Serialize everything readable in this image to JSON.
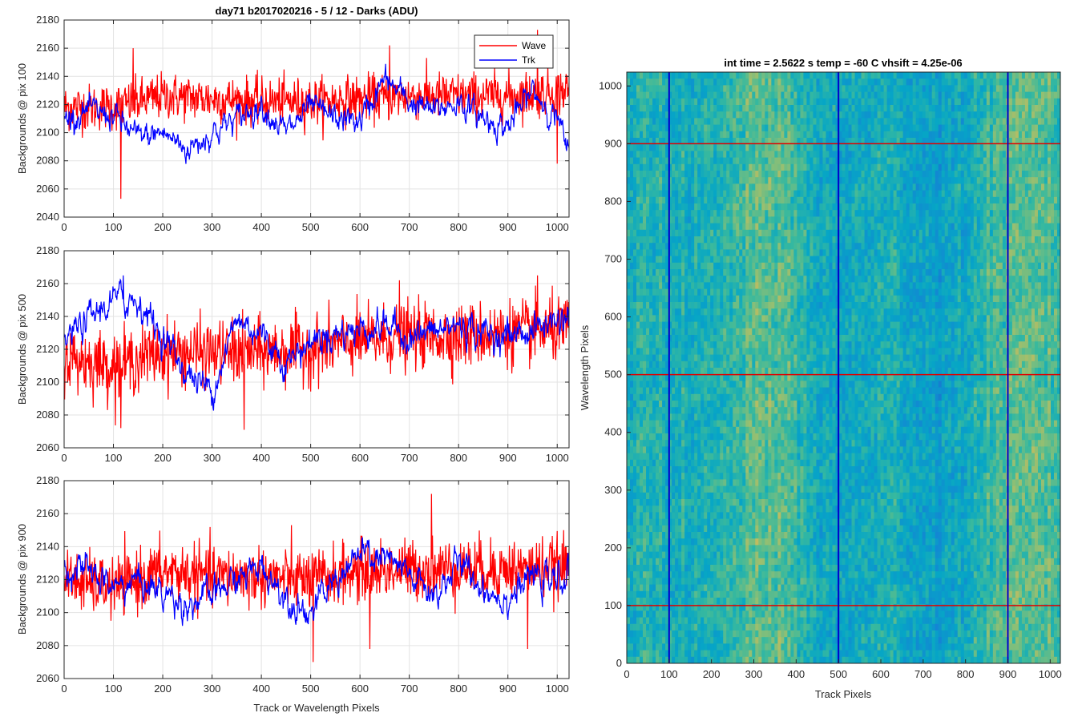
{
  "figure": {
    "title": "day71 b2017020216 - 5 / 12 - Darks (ADU)",
    "xlabel": "Track or Wavelength Pixels",
    "legend": [
      "Wave",
      "Trk"
    ],
    "colors": {
      "wave": "#ff0000",
      "trk": "#0000ff",
      "grid": "#e6e6e6",
      "axis": "#262626"
    }
  },
  "chart_data": [
    {
      "type": "line",
      "ylabel": "Backgrounds @ pix 100",
      "xlim": [
        0,
        1024
      ],
      "ylim": [
        2040,
        2180
      ],
      "xticks": [
        0,
        100,
        200,
        300,
        400,
        500,
        600,
        700,
        800,
        900,
        1000
      ],
      "yticks": [
        2040,
        2060,
        2080,
        2100,
        2120,
        2140,
        2160,
        2180
      ],
      "grid": true,
      "legend_position": "top-right",
      "series": [
        {
          "name": "Wave",
          "color": "#ff0000",
          "baseline": {
            "x": [
              0,
              100,
              200,
              300,
              400,
              500,
              600,
              700,
              800,
              900,
              1024
            ],
            "y": [
              2118,
              2118,
              2126,
              2124,
              2122,
              2122,
              2124,
              2126,
              2126,
              2126,
              2130
            ]
          },
          "noise": 11,
          "spikes": [
            [
              115,
              2053
            ],
            [
              140,
              2160
            ],
            [
              960,
              2173
            ],
            [
              1000,
              2078
            ],
            [
              660,
              2162
            ]
          ]
        },
        {
          "name": "Trk",
          "color": "#0000ff",
          "baseline": {
            "x": [
              0,
              50,
              100,
              150,
              200,
              250,
              300,
              350,
              400,
              450,
              500,
              550,
              600,
              650,
              700,
              750,
              800,
              850,
              900,
              950,
              1000,
              1024
            ],
            "y": [
              2110,
              2115,
              2112,
              2096,
              2100,
              2088,
              2100,
              2110,
              2120,
              2100,
              2118,
              2110,
              2108,
              2138,
              2122,
              2115,
              2122,
              2110,
              2104,
              2130,
              2110,
              2082
            ]
          },
          "noise": 4
        }
      ]
    },
    {
      "type": "line",
      "ylabel": "Backgrounds @ pix 500",
      "xlim": [
        0,
        1024
      ],
      "ylim": [
        2060,
        2180
      ],
      "xticks": [
        0,
        100,
        200,
        300,
        400,
        500,
        600,
        700,
        800,
        900,
        1000
      ],
      "yticks": [
        2060,
        2080,
        2100,
        2120,
        2140,
        2160,
        2180
      ],
      "grid": true,
      "series": [
        {
          "name": "Wave",
          "color": "#ff0000",
          "baseline": {
            "x": [
              0,
              100,
              200,
              300,
              400,
              500,
              600,
              700,
              800,
              900,
              1024
            ],
            "y": [
              2115,
              2110,
              2118,
              2118,
              2118,
              2120,
              2125,
              2128,
              2128,
              2130,
              2132
            ]
          },
          "noise": 13,
          "spikes": [
            [
              115,
              2072
            ],
            [
              365,
              2071
            ],
            [
              680,
              2162
            ],
            [
              960,
              2165
            ]
          ]
        },
        {
          "name": "Trk",
          "color": "#0000ff",
          "baseline": {
            "x": [
              0,
              50,
              100,
              150,
              200,
              250,
              300,
              350,
              400,
              450,
              500,
              550,
              600,
              650,
              700,
              750,
              800,
              850,
              900,
              950,
              1000,
              1024
            ],
            "y": [
              2125,
              2138,
              2150,
              2150,
              2128,
              2105,
              2095,
              2138,
              2130,
              2112,
              2125,
              2130,
              2132,
              2135,
              2128,
              2130,
              2135,
              2130,
              2128,
              2132,
              2138,
              2140
            ]
          },
          "noise": 4,
          "spikes": [
            [
              120,
              2165
            ]
          ]
        }
      ]
    },
    {
      "type": "line",
      "ylabel": "Backgrounds @ pix 900",
      "xlim": [
        0,
        1024
      ],
      "ylim": [
        2060,
        2180
      ],
      "xticks": [
        0,
        100,
        200,
        300,
        400,
        500,
        600,
        700,
        800,
        900,
        1000
      ],
      "yticks": [
        2060,
        2080,
        2100,
        2120,
        2140,
        2160,
        2180
      ],
      "grid": true,
      "series": [
        {
          "name": "Wave",
          "color": "#ff0000",
          "baseline": {
            "x": [
              0,
              100,
              200,
              300,
              400,
              500,
              600,
              700,
              800,
              900,
              1024
            ],
            "y": [
              2120,
              2115,
              2125,
              2122,
              2122,
              2120,
              2125,
              2126,
              2127,
              2126,
              2128
            ]
          },
          "noise": 12,
          "spikes": [
            [
              505,
              2070
            ],
            [
              620,
              2078
            ],
            [
              745,
              2172
            ],
            [
              940,
              2078
            ]
          ]
        },
        {
          "name": "Trk",
          "color": "#0000ff",
          "baseline": {
            "x": [
              0,
              50,
              100,
              150,
              200,
              250,
              300,
              350,
              400,
              450,
              500,
              550,
              600,
              650,
              700,
              750,
              800,
              850,
              900,
              950,
              1000,
              1024
            ],
            "y": [
              2128,
              2125,
              2115,
              2120,
              2112,
              2105,
              2110,
              2120,
              2128,
              2110,
              2100,
              2120,
              2135,
              2132,
              2122,
              2110,
              2130,
              2115,
              2108,
              2122,
              2118,
              2125
            ]
          },
          "noise": 4
        }
      ]
    },
    {
      "type": "heatmap",
      "title": "int time = 2.5622 s    temp = -60 C    vhsift = 4.25e-06",
      "xlabel": "Track Pixels",
      "ylabel": "Wavelength Pixels",
      "xlim": [
        0,
        1024
      ],
      "ylim": [
        0,
        1024
      ],
      "xticks": [
        0,
        100,
        200,
        300,
        400,
        500,
        600,
        700,
        800,
        900,
        1000
      ],
      "yticks": [
        0,
        100,
        200,
        300,
        400,
        500,
        600,
        700,
        800,
        900,
        1000
      ],
      "colormap": "parula",
      "vertical_lines": {
        "x": [
          100,
          500,
          900
        ],
        "color": "#0000cc"
      },
      "horizontal_lines": {
        "y": [
          100,
          500,
          900
        ],
        "color": "#e00000"
      }
    }
  ]
}
